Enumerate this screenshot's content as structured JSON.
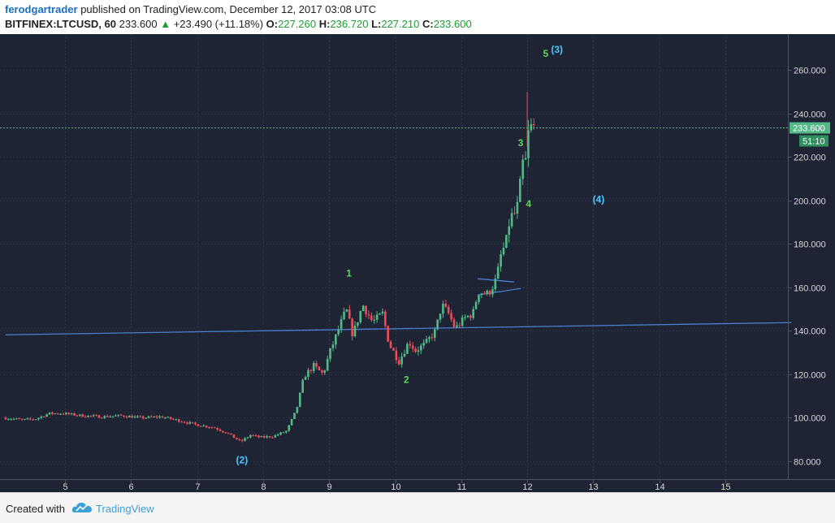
{
  "header": {
    "author": "ferodgartrader",
    "published_text": " published on TradingView.com, December 12, 2017 03:08 UTC",
    "symbol": "BITFINEX:LTCUSD, 60",
    "last": " 233.600 ",
    "change_arrow": "▲",
    "change": " +23.490 (+11.18%)",
    "o_label": " O:",
    "o_value": "227.260",
    "h_label": " H:",
    "h_value": "236.720",
    "l_label": " L:",
    "l_value": "227.210",
    "c_label": " C:",
    "c_value": "233.600"
  },
  "footer": {
    "created_with": "Created with",
    "brand": "TradingView"
  },
  "chart_data": {
    "type": "candlestick",
    "symbol": "BITFINEX:LTCUSD",
    "interval": "60",
    "x_ticks": [
      "5",
      "6",
      "7",
      "8",
      "9",
      "10",
      "11",
      "12",
      "13",
      "14",
      "15"
    ],
    "y_ticks": [
      "80.000",
      "100.000",
      "120.000",
      "140.000",
      "160.000",
      "180.000",
      "200.000",
      "220.000",
      "240.000",
      "260.000"
    ],
    "ylim": [
      74,
      277
    ],
    "xlim": [
      4.1,
      16.0
    ],
    "grid": true,
    "last_price_label": "233.600",
    "countdown_label": "51:10",
    "last_price": 233.6,
    "colors": {
      "background": "#1e2433",
      "up": "#53b987",
      "down": "#eb4d5c",
      "grid": "#2c3347",
      "trendline": "#4a7fd6",
      "wave_green": "#5bd85b",
      "wave_cyan": "#4ac9ff",
      "axis_text": "#d6d6d6",
      "last_price_line": "#53b987"
    },
    "price_path": [
      [
        4.1,
        100
      ],
      [
        4.4,
        99
      ],
      [
        4.6,
        99.5
      ],
      [
        4.8,
        102
      ],
      [
        5.0,
        102
      ],
      [
        5.3,
        101
      ],
      [
        5.6,
        100.5
      ],
      [
        5.9,
        101
      ],
      [
        6.2,
        100
      ],
      [
        6.5,
        100.5
      ],
      [
        6.8,
        98.5
      ],
      [
        7.0,
        97
      ],
      [
        7.3,
        95.5
      ],
      [
        7.5,
        93
      ],
      [
        7.7,
        89
      ],
      [
        7.85,
        92
      ],
      [
        8.0,
        91
      ],
      [
        8.2,
        91.5
      ],
      [
        8.4,
        94
      ],
      [
        8.55,
        104
      ],
      [
        8.65,
        118
      ],
      [
        8.8,
        124
      ],
      [
        8.95,
        120
      ],
      [
        9.05,
        130
      ],
      [
        9.2,
        142
      ],
      [
        9.3,
        150
      ],
      [
        9.4,
        138
      ],
      [
        9.55,
        152
      ],
      [
        9.7,
        144
      ],
      [
        9.85,
        148
      ],
      [
        9.95,
        134
      ],
      [
        10.1,
        126
      ],
      [
        10.25,
        135
      ],
      [
        10.35,
        131
      ],
      [
        10.5,
        134
      ],
      [
        10.65,
        140
      ],
      [
        10.75,
        152
      ],
      [
        10.85,
        148
      ],
      [
        10.95,
        141
      ],
      [
        11.1,
        146
      ],
      [
        11.22,
        148
      ],
      [
        11.3,
        158
      ],
      [
        11.45,
        157
      ],
      [
        11.55,
        162
      ],
      [
        11.6,
        168
      ],
      [
        11.65,
        176
      ],
      [
        11.72,
        180
      ],
      [
        11.78,
        192
      ],
      [
        11.86,
        194
      ],
      [
        11.92,
        200
      ],
      [
        11.96,
        220
      ],
      [
        12.0,
        212
      ],
      [
        12.05,
        230
      ],
      [
        12.1,
        233.6
      ]
    ],
    "lines": [
      {
        "name": "long-trendline",
        "points": [
          [
            4.1,
            138.2
          ],
          [
            16.0,
            143.8
          ]
        ]
      },
      {
        "name": "triangle-upper",
        "points": [
          [
            11.25,
            164
          ],
          [
            11.8,
            162.5
          ]
        ]
      },
      {
        "name": "triangle-lower",
        "points": [
          [
            11.25,
            156.5
          ],
          [
            11.9,
            159.5
          ]
        ]
      }
    ],
    "annotations": [
      {
        "label": "1",
        "x": 9.3,
        "y": 165,
        "color": "green"
      },
      {
        "label": "2",
        "x": 10.17,
        "y": 116,
        "color": "green"
      },
      {
        "label": "3",
        "x": 11.9,
        "y": 225,
        "color": "green"
      },
      {
        "label": "4",
        "x": 12.02,
        "y": 197,
        "color": "green"
      },
      {
        "label": "5",
        "x": 12.28,
        "y": 266,
        "color": "green"
      },
      {
        "label": "(3)",
        "x": 12.45,
        "y": 268,
        "color": "cyan"
      },
      {
        "label": "(4)",
        "x": 13.08,
        "y": 199,
        "color": "cyan"
      },
      {
        "label": "(2)",
        "x": 7.68,
        "y": 79,
        "color": "cyan"
      }
    ]
  }
}
